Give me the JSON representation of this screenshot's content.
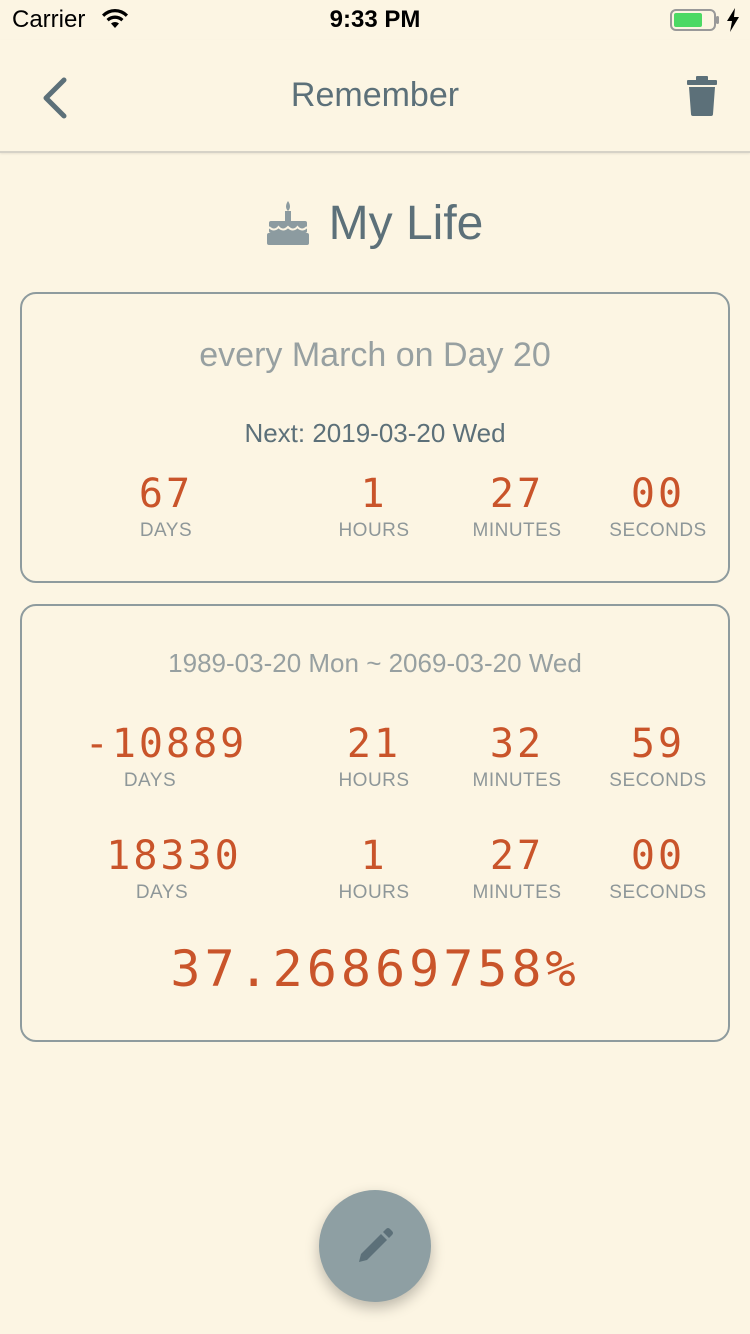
{
  "status_bar": {
    "carrier": "Carrier",
    "time": "9:33 PM",
    "battery_color": "#4cd964"
  },
  "nav": {
    "title": "Remember",
    "back_icon": "chevron-left-icon",
    "delete_icon": "trash-icon"
  },
  "heading": {
    "icon": "cake-icon",
    "title": "My Life"
  },
  "recurrence_card": {
    "rule": "every March on Day 20",
    "next": "Next: 2019-03-20 Wed",
    "countdown": {
      "days": "67",
      "days_label": "DAYS",
      "hours": "1",
      "hours_label": "HOURS",
      "minutes": "27",
      "minutes_label": "MINUTES",
      "seconds": "00",
      "seconds_label": "SECONDS"
    }
  },
  "span_card": {
    "range": "1989-03-20 Mon ~ 2069-03-20 Wed",
    "elapsed": {
      "days": "-10889",
      "days_label": "DAYS",
      "hours": "21",
      "hours_label": "HOURS",
      "minutes": "32",
      "minutes_label": "MINUTES",
      "seconds": "59",
      "seconds_label": "SECONDS"
    },
    "remaining": {
      "days": "18330",
      "days_label": "DAYS",
      "hours": "1",
      "hours_label": "HOURS",
      "minutes": "27",
      "minutes_label": "MINUTES",
      "seconds": "00",
      "seconds_label": "SECONDS"
    },
    "percent": "37.26869758%"
  },
  "fab": {
    "icon": "pencil-icon"
  },
  "colors": {
    "background": "#fcf5e3",
    "accent": "#c9542a",
    "primary_text": "#5c7079",
    "muted_text": "#97a0a1",
    "fab": "#8e9fa3"
  }
}
